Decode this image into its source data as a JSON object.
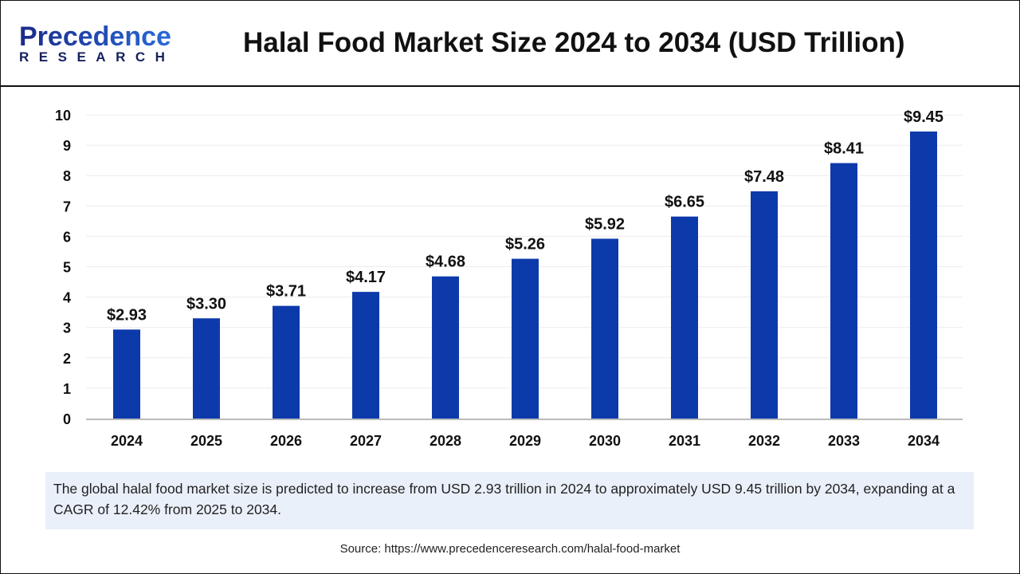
{
  "header": {
    "logo_main": "Precedence",
    "logo_sub": "RESEARCH",
    "title": "Halal Food Market Size 2024 to 2034 (USD Trillion)"
  },
  "chart_data": {
    "type": "bar",
    "title": "Halal Food Market Size 2024 to 2034 (USD Trillion)",
    "categories": [
      "2024",
      "2025",
      "2026",
      "2027",
      "2028",
      "2029",
      "2030",
      "2031",
      "2032",
      "2033",
      "2034"
    ],
    "values": [
      2.93,
      3.3,
      3.71,
      4.17,
      4.68,
      5.26,
      5.92,
      6.65,
      7.48,
      8.41,
      9.45
    ],
    "data_labels": [
      "$2.93",
      "$3.30",
      "$3.71",
      "$4.17",
      "$4.68",
      "$5.26",
      "$5.92",
      "$6.65",
      "$7.48",
      "$8.41",
      "$9.45"
    ],
    "ylim": [
      0,
      10
    ],
    "yticks": [
      0,
      1,
      2,
      3,
      4,
      5,
      6,
      7,
      8,
      9,
      10
    ],
    "xlabel": "",
    "ylabel": "",
    "grid": true,
    "bar_color": "#0d3aab"
  },
  "description": "The global halal food market size is predicted to increase from USD 2.93 trillion in 2024 to approximately USD 9.45 trillion by 2034, expanding at a CAGR of 12.42% from 2025 to 2034.",
  "source": "Source: https://www.precedenceresearch.com/halal-food-market"
}
